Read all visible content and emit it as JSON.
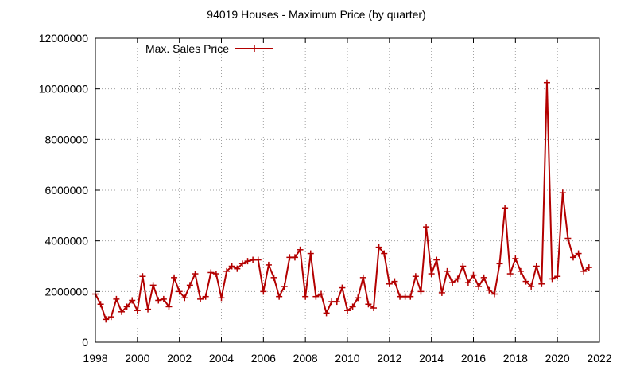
{
  "chart_data": {
    "type": "line",
    "title": "94019 Houses - Maximum Price (by quarter)",
    "xlabel": "",
    "ylabel": "",
    "xlim": [
      1998,
      2022
    ],
    "ylim": [
      0,
      12000000
    ],
    "x_ticks": [
      1998,
      2000,
      2002,
      2004,
      2006,
      2008,
      2010,
      2012,
      2014,
      2016,
      2018,
      2020,
      2022
    ],
    "y_ticks": [
      0,
      2000000,
      4000000,
      6000000,
      8000000,
      10000000,
      12000000
    ],
    "grid": true,
    "legend_position": "top-left",
    "series": [
      {
        "name": "Max. Sales Price",
        "color": "#b30000",
        "marker": "plus",
        "x": [
          1998.0,
          1998.25,
          1998.5,
          1998.75,
          1999.0,
          1999.25,
          1999.5,
          1999.75,
          2000.0,
          2000.25,
          2000.5,
          2000.75,
          2001.0,
          2001.25,
          2001.5,
          2001.75,
          2002.0,
          2002.25,
          2002.5,
          2002.75,
          2003.0,
          2003.25,
          2003.5,
          2003.75,
          2004.0,
          2004.25,
          2004.5,
          2004.75,
          2005.0,
          2005.25,
          2005.5,
          2005.75,
          2006.0,
          2006.25,
          2006.5,
          2006.75,
          2007.0,
          2007.25,
          2007.5,
          2007.75,
          2008.0,
          2008.25,
          2008.5,
          2008.75,
          2009.0,
          2009.25,
          2009.5,
          2009.75,
          2010.0,
          2010.25,
          2010.5,
          2010.75,
          2011.0,
          2011.25,
          2011.5,
          2011.75,
          2012.0,
          2012.25,
          2012.5,
          2012.75,
          2013.0,
          2013.25,
          2013.5,
          2013.75,
          2014.0,
          2014.25,
          2014.5,
          2014.75,
          2015.0,
          2015.25,
          2015.5,
          2015.75,
          2016.0,
          2016.25,
          2016.5,
          2016.75,
          2017.0,
          2017.25,
          2017.5,
          2017.75,
          2018.0,
          2018.25,
          2018.5,
          2018.75,
          2019.0,
          2019.25,
          2019.5,
          2019.75,
          2020.0,
          2020.25,
          2020.5,
          2020.75,
          2021.0,
          2021.25,
          2021.5
        ],
        "values": [
          1900000,
          1500000,
          900000,
          1000000,
          1700000,
          1200000,
          1400000,
          1650000,
          1250000,
          2600000,
          1300000,
          2250000,
          1650000,
          1700000,
          1400000,
          2550000,
          2000000,
          1750000,
          2250000,
          2700000,
          1700000,
          1800000,
          2750000,
          2700000,
          1750000,
          2800000,
          3000000,
          2900000,
          3100000,
          3200000,
          3250000,
          3250000,
          2000000,
          3050000,
          2550000,
          1800000,
          2200000,
          3350000,
          3350000,
          3650000,
          1800000,
          3500000,
          1800000,
          1900000,
          1150000,
          1600000,
          1600000,
          2150000,
          1250000,
          1400000,
          1750000,
          2550000,
          1500000,
          1350000,
          3750000,
          3500000,
          2300000,
          2400000,
          1800000,
          1800000,
          1800000,
          2600000,
          2000000,
          4550000,
          2700000,
          3250000,
          1950000,
          2800000,
          2350000,
          2500000,
          3000000,
          2350000,
          2650000,
          2200000,
          2550000,
          2050000,
          1900000,
          3100000,
          5300000,
          2700000,
          3300000,
          2800000,
          2400000,
          2200000,
          3000000,
          2300000,
          10250000,
          2500000,
          2600000,
          5900000,
          4100000,
          3350000,
          3500000,
          2800000,
          2950000
        ]
      }
    ]
  }
}
